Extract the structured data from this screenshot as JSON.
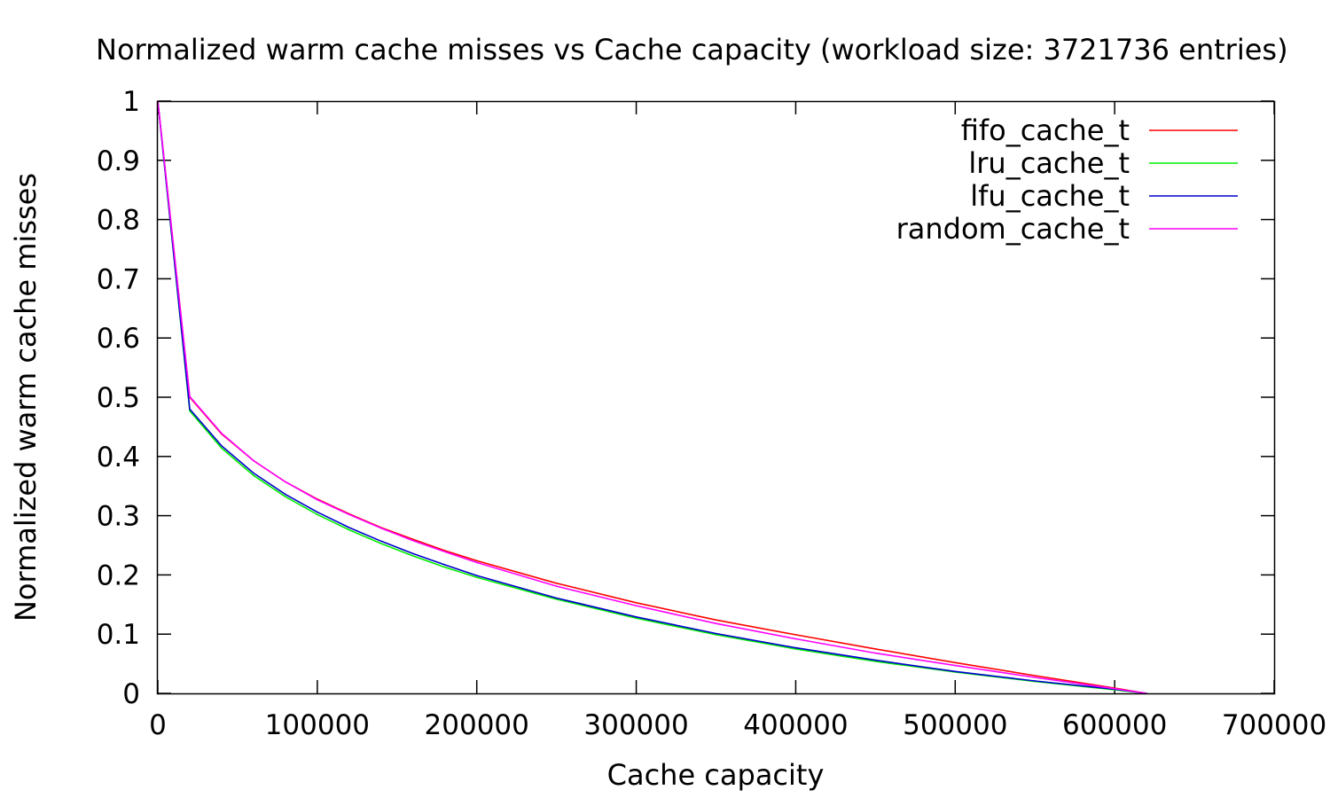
{
  "chart_data": {
    "type": "line",
    "title": "Normalized warm cache misses vs Cache capacity (workload size: 3721736 entries)",
    "xlabel": "Cache capacity",
    "ylabel": "Normalized warm cache misses",
    "xlim": [
      0,
      700000
    ],
    "ylim": [
      0,
      1
    ],
    "x_ticks": [
      "0",
      "100000",
      "200000",
      "300000",
      "400000",
      "500000",
      "600000",
      "700000"
    ],
    "y_ticks": [
      "0",
      "0.1",
      "0.2",
      "0.3",
      "0.4",
      "0.5",
      "0.6",
      "0.7",
      "0.8",
      "0.9",
      "1"
    ],
    "grid": false,
    "legend_position": "top-right",
    "x": [
      0,
      20000,
      40000,
      60000,
      80000,
      100000,
      120000,
      140000,
      160000,
      180000,
      200000,
      250000,
      300000,
      350000,
      400000,
      450000,
      500000,
      550000,
      600000,
      620000
    ],
    "series": [
      {
        "name": "fifo_cache_t",
        "color": "#ff0000",
        "values": [
          1.0,
          0.5,
          0.438,
          0.393,
          0.357,
          0.328,
          0.303,
          0.28,
          0.26,
          0.241,
          0.224,
          0.186,
          0.153,
          0.124,
          0.099,
          0.075,
          0.052,
          0.03,
          0.009,
          0.0
        ]
      },
      {
        "name": "lru_cache_t",
        "color": "#00ee00",
        "values": [
          1.0,
          0.477,
          0.414,
          0.368,
          0.332,
          0.302,
          0.276,
          0.253,
          0.232,
          0.213,
          0.196,
          0.159,
          0.127,
          0.099,
          0.075,
          0.054,
          0.036,
          0.02,
          0.006,
          0.0
        ]
      },
      {
        "name": "lfu_cache_t",
        "color": "#0000cc",
        "values": [
          1.0,
          0.48,
          0.418,
          0.372,
          0.336,
          0.306,
          0.28,
          0.257,
          0.236,
          0.217,
          0.199,
          0.161,
          0.129,
          0.101,
          0.077,
          0.056,
          0.037,
          0.021,
          0.007,
          0.0
        ]
      },
      {
        "name": "random_cache_t",
        "color": "#ff00ff",
        "values": [
          1.0,
          0.501,
          0.439,
          0.393,
          0.357,
          0.327,
          0.302,
          0.279,
          0.258,
          0.239,
          0.221,
          0.181,
          0.148,
          0.118,
          0.092,
          0.068,
          0.047,
          0.027,
          0.008,
          0.0
        ]
      }
    ]
  }
}
